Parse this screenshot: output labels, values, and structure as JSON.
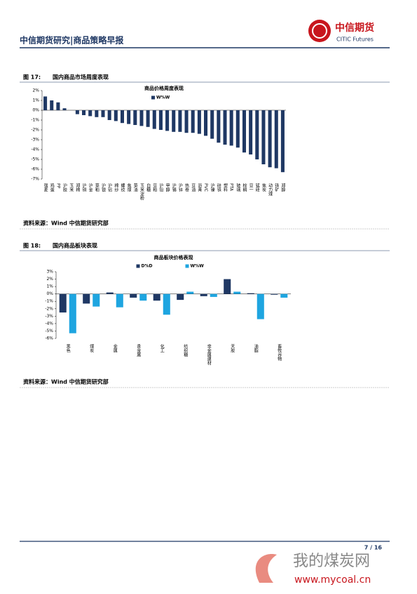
{
  "header": {
    "title": "中信期货研究|商品策略早报",
    "logo_cn": "中信期货",
    "logo_en": "CITIC Futures"
  },
  "figures": [
    {
      "number": "图 17:",
      "title": "国内商品市场周度表现",
      "source": "资料来源：Wind 中信期货研究部"
    },
    {
      "number": "图 18:",
      "title": "国内商品板块表现",
      "source": "资料来源：Wind 中信期货研究部"
    }
  ],
  "chart_data": [
    {
      "type": "bar",
      "title": "商品价格周度表现",
      "categories": [
        "强麦",
        "鸡蛋",
        "PP",
        "沪胶",
        "玉米",
        "郑棉",
        "沪铜",
        "沪金",
        "菜粕",
        "沪银",
        "沪铝",
        "棉纱",
        "螺纹",
        "焦煤",
        "菜油",
        "玉米淀粉",
        "白糖",
        "豆粕",
        "沪铅",
        "甲醇",
        "沪锡",
        "沪锌",
        "热卷",
        "豆油",
        "沥青",
        "PVC",
        "沪镍",
        "硅铁",
        "塑料",
        "PTA",
        "玻璃",
        "棕榈",
        "豆一",
        "锰硅",
        "焦炭",
        "动力煤",
        "铁矿",
        "郑醇"
      ],
      "series": [
        {
          "name": "W%W",
          "color": "#1f3864",
          "values": [
            1.4,
            1.0,
            0.8,
            0.2,
            0,
            -0.4,
            -0.5,
            -0.6,
            -0.7,
            -0.7,
            -1.0,
            -1.1,
            -1.3,
            -1.4,
            -1.5,
            -1.6,
            -1.7,
            -1.9,
            -2.0,
            -2.1,
            -2.2,
            -2.2,
            -2.3,
            -2.3,
            -2.4,
            -2.6,
            -2.9,
            -3.3,
            -3.5,
            -3.6,
            -3.8,
            -4.3,
            -4.5,
            -5.0,
            -5.5,
            -5.8,
            -5.9,
            -6.3
          ]
        }
      ],
      "ylim": [
        -7,
        2
      ],
      "yticks": [
        {
          "value": 2,
          "label": "2%"
        },
        {
          "value": 1,
          "label": "1%"
        },
        {
          "value": 0,
          "label": "0%"
        },
        {
          "value": -1,
          "label": "-1%"
        },
        {
          "value": -2,
          "label": "-2%"
        },
        {
          "value": -3,
          "label": "-3%"
        },
        {
          "value": -4,
          "label": "-4%"
        },
        {
          "value": -5,
          "label": "-5%"
        },
        {
          "value": -6,
          "label": "-6%"
        },
        {
          "value": -7,
          "label": "-7%"
        }
      ]
    },
    {
      "type": "bar",
      "title": "商品板块价格表现",
      "categories": [
        "黑色",
        "煤炭",
        "金属",
        "贵金属",
        "化工",
        "纺织糖",
        "非金属建材",
        "天胶",
        "油脂",
        "畜牧谷物"
      ],
      "series": [
        {
          "name": "D%D",
          "color": "#1f3864",
          "values": [
            -2.5,
            -1.3,
            0.2,
            -0.5,
            -0.9,
            -0.8,
            -0.3,
            2.0,
            0.1,
            -0.1
          ]
        },
        {
          "name": "W%W",
          "color": "#1ea5e0",
          "values": [
            -5.3,
            -1.7,
            -1.8,
            -0.9,
            -2.8,
            0.3,
            -0.4,
            0.3,
            -3.4,
            -0.5
          ]
        }
      ],
      "ylim": [
        -6,
        3
      ],
      "yticks": [
        {
          "value": 3,
          "label": "3%"
        },
        {
          "value": 2,
          "label": "2%"
        },
        {
          "value": 1,
          "label": "1%"
        },
        {
          "value": 0,
          "label": "0%"
        },
        {
          "value": -1,
          "label": "-1%"
        },
        {
          "value": -2,
          "label": "-2%"
        },
        {
          "value": -3,
          "label": "-3%"
        },
        {
          "value": -4,
          "label": "-4%"
        },
        {
          "value": -5,
          "label": "-5%"
        },
        {
          "value": -6,
          "label": "-6%"
        }
      ]
    }
  ],
  "footer": {
    "page": "7 / 16"
  },
  "watermark": {
    "name": "我的煤炭网",
    "url": "www.mycoal.cn"
  }
}
